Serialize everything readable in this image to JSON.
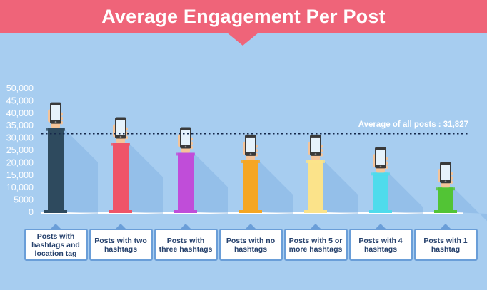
{
  "title": "Average Engagement Per Post",
  "chart_data": {
    "type": "bar",
    "title": "Average Engagement Per Post",
    "xlabel": "",
    "ylabel": "",
    "ylim": [
      0,
      50000
    ],
    "yticks": [
      "50,000",
      "45,000",
      "40,000",
      "35,000",
      "30,000",
      "25,000",
      "20,000",
      "15,000",
      "10,000",
      "5000",
      "0"
    ],
    "categories": [
      "Posts with hashtags and location tag",
      "Posts with two hashtags",
      "Posts with three hashtags",
      "Posts with no hashtags",
      "Posts with 5 or more hashtags",
      "Posts with 4 hashtags",
      "Posts with 1 hashtag"
    ],
    "values": [
      34000,
      28000,
      24000,
      21000,
      21000,
      16000,
      10000
    ],
    "bar_colors": [
      "#2e4a5e",
      "#ef5468",
      "#c04dd9",
      "#f5a623",
      "#fbe38a",
      "#4fdbec",
      "#52c435"
    ],
    "reference_line": {
      "value": 31827,
      "label": "Average of all posts : 31,827"
    },
    "grid": false,
    "legend": "none"
  },
  "icon": "hand-holding-phone-icon"
}
